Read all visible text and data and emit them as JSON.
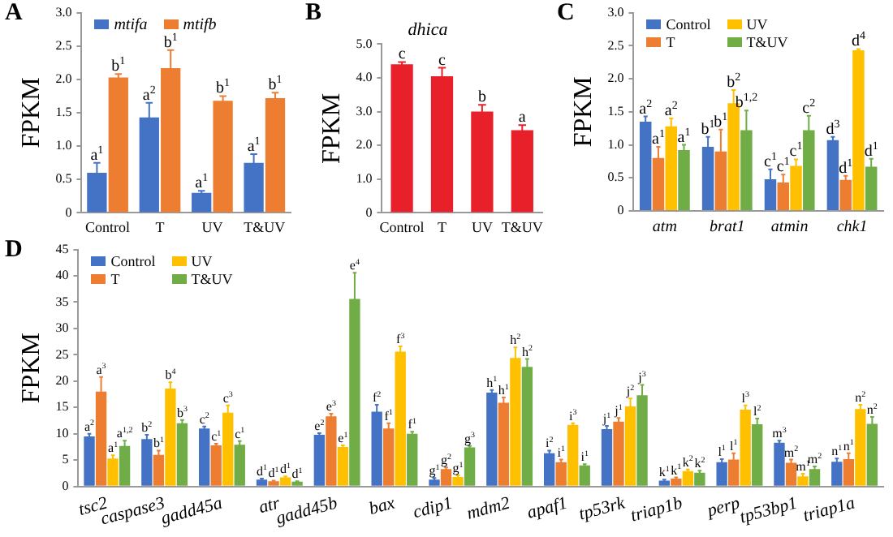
{
  "chart_data": [
    {
      "type": "bar",
      "ylabel": "FPKM",
      "categories": [
        "Control",
        "T",
        "UV",
        "T&UV"
      ],
      "legend": "top left",
      "grid": false,
      "ylim": [
        0,
        3
      ],
      "yticks": [
        0,
        0.5,
        {
          "value": 1,
          "label": "1.0"
        },
        1.5,
        {
          "value": 2,
          "label": "2.0"
        },
        2.5,
        {
          "value": 3,
          "label": "3.0"
        }
      ],
      "series": [
        {
          "name": "mtifa",
          "color": "#4472c4",
          "values": [
            0.6,
            1.43,
            0.3,
            0.75
          ],
          "errors": [
            0.15,
            0.22,
            0.03,
            0.13
          ]
        },
        {
          "name": "mtifb",
          "color": "#ed7d31",
          "values": [
            2.03,
            2.17,
            1.68,
            1.72
          ],
          "errors": [
            0.05,
            0.27,
            0.07,
            0.08
          ]
        }
      ],
      "annotations": [
        "A",
        {
          "text": "a$^{1}$",
          "x": "Control",
          "y": 0.6
        },
        {
          "text": "a$^{2}$",
          "x": "T",
          "y": 1.43
        },
        {
          "text": "a$^{1}$",
          "x": "UV",
          "y": 0.3
        },
        {
          "text": "a$^{1}$",
          "x": "T&UV",
          "y": 0.75
        },
        {
          "text": "b$^{1}$",
          "x": "Control",
          "y": 2.03
        },
        {
          "text": "b$^{1}$",
          "x": "T",
          "y": 2.17
        },
        {
          "text": "b$^{1}$",
          "x": "UV",
          "y": 1.68
        },
        {
          "text": "b$^{1}$",
          "x": "T&UV",
          "y": 1.72
        }
      ]
    },
    {
      "type": "bar",
      "title": "dhica",
      "ylabel": "FPKM",
      "categories": [
        "Control",
        "T",
        "UV",
        "T&UV"
      ],
      "grid": false,
      "ylim": [
        0,
        5
      ],
      "yticks": [
        0,
        {
          "value": 1,
          "label": "1.0"
        },
        {
          "value": 2,
          "label": "2.0"
        },
        {
          "value": 3,
          "label": "3.0"
        },
        {
          "value": 4,
          "label": "4.0"
        },
        {
          "value": 5,
          "label": "5.0"
        }
      ],
      "series": [
        {
          "color": "#e8202a",
          "values": [
            4.4,
            4.05,
            3.0,
            2.45
          ],
          "errors": [
            0.07,
            0.25,
            0.2,
            0.15
          ]
        }
      ],
      "annotations": [
        "B",
        {
          "text": "c",
          "x": "Control",
          "y": 4.4
        },
        {
          "text": "c",
          "x": "T",
          "y": 4.05
        },
        {
          "text": "b",
          "x": "UV",
          "y": 3.0
        },
        {
          "text": "a",
          "x": "T&UV",
          "y": 2.45
        }
      ]
    },
    {
      "type": "bar",
      "ylabel": "FPKM",
      "categories": [
        "atm",
        "brat1",
        "atmin",
        "chk1"
      ],
      "legend": "top left",
      "grid": false,
      "ylim": [
        0,
        3
      ],
      "yticks": [
        0,
        0.5,
        {
          "value": 1,
          "label": "1.0"
        },
        1.5,
        {
          "value": 2,
          "label": "2.0"
        },
        2.5,
        {
          "value": 3,
          "label": "3.0"
        }
      ],
      "series": [
        {
          "name": "Control",
          "color": "#4472c4",
          "values": [
            1.35,
            0.97,
            0.48,
            1.07
          ],
          "errors": [
            0.08,
            0.15,
            0.15,
            0.05
          ]
        },
        {
          "name": "T",
          "color": "#ed7d31",
          "values": [
            0.8,
            0.9,
            0.43,
            0.47
          ],
          "errors": [
            0.17,
            0.33,
            0.12,
            0.06
          ]
        },
        {
          "name": "UV",
          "color": "#ffc000",
          "values": [
            1.28,
            1.63,
            0.68,
            2.43
          ],
          "errors": [
            0.12,
            0.2,
            0.1,
            0.02
          ]
        },
        {
          "name": "T&UV",
          "color": "#70ad47",
          "values": [
            0.92,
            1.22,
            1.22,
            0.67
          ],
          "errors": [
            0.08,
            0.3,
            0.22,
            0.12
          ]
        }
      ],
      "annotations": [
        "C",
        {
          "text": "a$^{2}$",
          "x": "atm",
          "y": 1.35
        },
        {
          "text": "b$^{1}$",
          "x": "brat1",
          "y": 0.97
        },
        {
          "text": "c$^{1}$",
          "x": "atmin",
          "y": 0.48
        },
        {
          "text": "d$^{3}$",
          "x": "chk1",
          "y": 1.07
        },
        {
          "text": "a$^{1}$",
          "x": "atm",
          "y": 0.8
        },
        {
          "text": "b$^{1}$",
          "x": "brat1",
          "y": 0.9
        },
        {
          "text": "c$^{1}$",
          "x": "atmin",
          "y": 0.43
        },
        {
          "text": "d$^{1}$",
          "x": "chk1",
          "y": 0.47
        },
        {
          "text": "a$^{2}$",
          "x": "atm",
          "y": 1.28
        },
        {
          "text": "b$^{2}$",
          "x": "brat1",
          "y": 1.63
        },
        {
          "text": "c$^{1}$",
          "x": "atmin",
          "y": 0.68
        },
        {
          "text": "d$^{4}$",
          "x": "chk1",
          "y": 2.43
        },
        {
          "text": "a$^{1}$",
          "x": "atm",
          "y": 0.92
        },
        {
          "text": "b$^{1,2}$",
          "x": "brat1",
          "y": 1.22
        },
        "c$^{2}$",
        {
          "text": "d$^{1}$",
          "x": "chk1",
          "y": 0.67
        }
      ]
    },
    {
      "type": "bar",
      "ylabel": "FPKM",
      "categories": [
        "tsc2",
        "caspase3",
        "gadd45a",
        "atr",
        "gadd45b",
        "bax",
        "cdip1",
        "mdm2",
        "apaf1",
        "tp53rk",
        "triap1b",
        "perp",
        "tp53bp1",
        "triap1a"
      ],
      "legend": "top left",
      "grid": false,
      "ylim": [
        0,
        45
      ],
      "yticks": [
        0,
        5,
        10,
        15,
        20,
        25,
        30,
        35,
        40,
        45
      ],
      "series": [
        {
          "name": "Control",
          "color": "#4472c4",
          "values": [
            9.5,
            9,
            11,
            1.3,
            9.8,
            14.2,
            1.3,
            17.8,
            6.3,
            10.9,
            1.1,
            4.6,
            8.3,
            4.7
          ],
          "errors": [
            0.5,
            0.8,
            0.4,
            0.2,
            0.3,
            1.3,
            0.3,
            0.5,
            0.5,
            0.6,
            0.2,
            0.6,
            0.4,
            0.6
          ]
        },
        {
          "name": "T",
          "color": "#ed7d31",
          "values": [
            18,
            6,
            7.8,
            1,
            13.3,
            11,
            3.3,
            15.9,
            4.6,
            12.3,
            1.5,
            5.1,
            4.5,
            5.2
          ],
          "errors": [
            2.8,
            0.8,
            0.3,
            0.1,
            0.5,
            1,
            0.3,
            1,
            0.5,
            0.7,
            0.2,
            1.2,
            0.6,
            1.1
          ]
        },
        {
          "name": "UV",
          "color": "#ffc000",
          "values": [
            5.3,
            18.6,
            14,
            1.7,
            7.5,
            25.6,
            1.8,
            24.4,
            11.7,
            15.2,
            2.9,
            14.6,
            1.9,
            14.7
          ],
          "errors": [
            0.6,
            1.2,
            1.4,
            0.2,
            0.3,
            1,
            0.3,
            2,
            0.3,
            1.5,
            0.3,
            0.8,
            0.5,
            0.8
          ]
        },
        {
          "name": "T&UV",
          "color": "#70ad47",
          "values": [
            7.7,
            12,
            7.9,
            0.9,
            35.6,
            10,
            7.4,
            22.7,
            4,
            17.3,
            2.6,
            11.8,
            3.3,
            11.9
          ],
          "errors": [
            1,
            0.6,
            0.7,
            0.1,
            5,
            0.4,
            0.3,
            1.5,
            0.2,
            2,
            0.4,
            1.1,
            0.5,
            1.3
          ]
        }
      ],
      "annotations": [
        "D",
        {
          "text": "a$^{2}$",
          "x": "tsc2",
          "y": 9.5
        },
        {
          "text": "a$^{3}$",
          "x": "tsc2",
          "y": 18
        },
        {
          "text": "a$^{1}$",
          "x": "tsc2",
          "y": 5.3
        },
        {
          "text": "a$^{1,2}$",
          "x": "tsc2",
          "y": 7.7
        },
        {
          "text": "b$^{2}$",
          "x": "caspase3",
          "y": 9
        },
        {
          "text": "b$^{1}$",
          "x": "caspase3",
          "y": 6
        },
        {
          "text": "b$^{4}$",
          "x": "caspase3",
          "y": 18.6
        },
        {
          "text": "b$^{3}$",
          "x": "caspase3",
          "y": 12
        },
        {
          "text": "c$^{2}$",
          "x": "gadd45a",
          "y": 11
        },
        {
          "text": "c$^{1}$",
          "x": "gadd45a",
          "y": 7.8
        },
        {
          "text": "c$^{3}$",
          "x": "gadd45a",
          "y": 14
        },
        {
          "text": "c$^{1}$",
          "x": "gadd45a",
          "y": 7.9
        },
        {
          "text": "d$^{1}$",
          "x": "atr",
          "y": 1.3
        },
        {
          "text": "d$^{1}$",
          "x": "atr",
          "y": 1
        },
        {
          "text": "d$^{1}$",
          "x": "atr",
          "y": 1.7
        },
        {
          "text": "d$^{1}$",
          "x": "atr",
          "y": 0.9
        },
        {
          "text": "e$^{2}$",
          "x": "gadd45b",
          "y": 9.8
        },
        {
          "text": "e$^{3}$",
          "x": "gadd45b",
          "y": 13.3
        },
        {
          "text": "e$^{1}$",
          "x": "gadd45b",
          "y": 7.5
        },
        "e$^{4}$",
        {
          "text": "f$^{2}$",
          "x": "bax",
          "y": 14.2
        },
        {
          "text": "f$^{1}$",
          "x": "bax",
          "y": 11
        },
        {
          "text": "f$^{3}$",
          "x": "bax",
          "y": 25.6
        },
        {
          "text": "f$^{1}$",
          "x": "bax",
          "y": 10
        },
        {
          "text": "g$^{1}$",
          "x": "cdip1",
          "y": 1.3
        },
        {
          "text": "g$^{2}$",
          "x": "cdip1",
          "y": 3.3
        },
        {
          "text": "g$^{1}$",
          "x": "cdip1",
          "y": 1.8
        },
        "g$^{3}$",
        {
          "text": "h$^{1}$",
          "x": "mdm2",
          "y": 17.8
        },
        {
          "text": "h$^{1}$",
          "x": "mdm2",
          "y": 15.9
        },
        {
          "text": "h$^{2}$",
          "x": "mdm2",
          "y": 24.4
        },
        {
          "text": "h$^{2}$",
          "x": "mdm2",
          "y": 22.7
        },
        {
          "text": "i$^{2}$",
          "x": "apaf1",
          "y": 6.3
        },
        {
          "text": "i$^{1}$",
          "x": "apaf1",
          "y": 4.6
        },
        {
          "text": "i$^{3}$",
          "x": "apaf1",
          "y": 11.7
        },
        {
          "text": "i$^{1}$",
          "x": "apaf1",
          "y": 4
        },
        {
          "text": "j$^{1}$",
          "x": "tp53rk",
          "y": 10.9
        },
        {
          "text": "j$^{1}$",
          "x": "tp53rk",
          "y": 12.3
        },
        {
          "text": "j$^{2}$",
          "x": "tp53rk",
          "y": 15.2
        },
        {
          "text": "j$^{3}$",
          "x": "tp53rk",
          "y": 17.3
        },
        {
          "text": "k$^{1}$",
          "x": "triap1b",
          "y": 1.1
        },
        {
          "text": "k$^{1}$",
          "x": "triap1b",
          "y": 1.5
        },
        {
          "text": "k$^{2}$",
          "x": "triap1b",
          "y": 2.9
        },
        {
          "text": "k$^{2}$",
          "x": "triap1b",
          "y": 2.6
        },
        {
          "text": "l$^{1}$",
          "x": "perp",
          "y": 4.6
        },
        {
          "text": "l$^{1}$",
          "x": "perp",
          "y": 5.1
        },
        {
          "text": "l$^{3}$",
          "x": "perp",
          "y": 14.6
        },
        {
          "text": "l$^{2}$",
          "x": "perp",
          "y": 11.8
        },
        "m$^{3}$",
        {
          "text": "m$^{2}$",
          "x": "tp53bp1",
          "y": 4.5
        },
        {
          "text": "m$^{1}$",
          "x": "tp53bp1",
          "y": 1.9
        },
        {
          "text": "m$^{2}$",
          "x": "tp53bp1",
          "y": 3.3
        },
        {
          "text": "n$^{1}$",
          "x": "triap1a",
          "y": 4.7
        },
        {
          "text": "n$^{1}$",
          "x": "triap1a",
          "y": 5.2
        },
        {
          "text": "n$^{2}$",
          "x": "triap1a",
          "y": 14.7
        },
        {
          "text": "n$^{2}$",
          "x": "triap1a",
          "y": 11.9
        }
      ]
    }
  ]
}
